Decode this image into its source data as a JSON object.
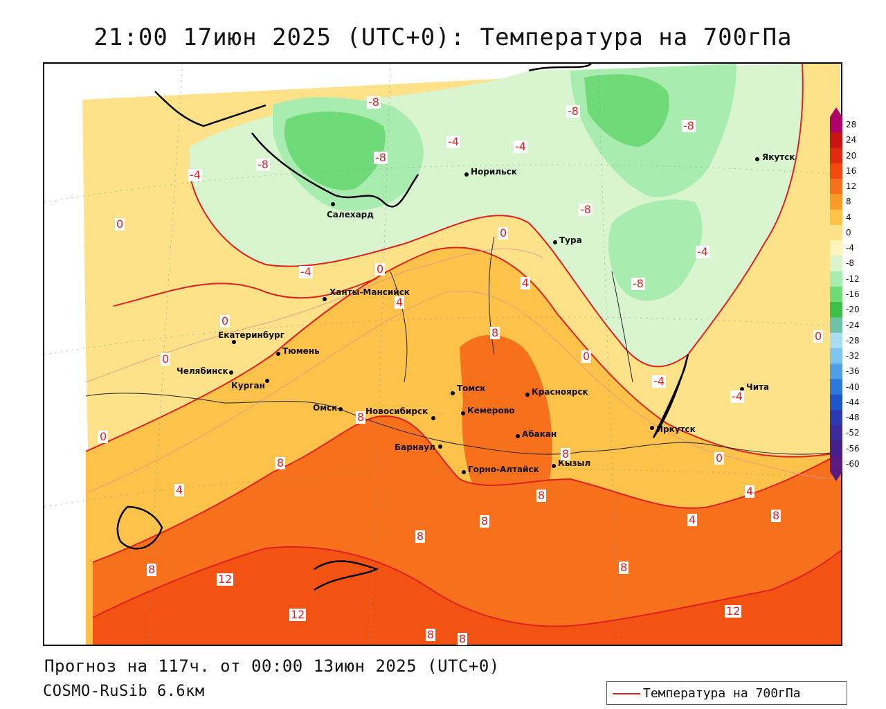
{
  "title": "21:00 17июн 2025 (UTC+0): Температура на 700гПа",
  "footer": {
    "forecast": "Прогноз на 117ч. от 00:00 13июн 2025 (UTC+0)",
    "model": "COSMO-RuSib 6.6км"
  },
  "legend": {
    "label": "Температура на 700гПа",
    "line_color": "#e02020"
  },
  "colorbar": {
    "ticks": [
      "28",
      "24",
      "20",
      "16",
      "12",
      "8",
      "4",
      "0",
      "-4",
      "-8",
      "-12",
      "-16",
      "-20",
      "-24",
      "-28",
      "-32",
      "-36",
      "-40",
      "-44",
      "-48",
      "-52",
      "-56",
      "-60"
    ],
    "colors": [
      "#b0006a",
      "#c81414",
      "#e02a10",
      "#f04a10",
      "#f7701c",
      "#fa9a28",
      "#fcc24a",
      "#fde28a",
      "#fdf3bc",
      "#d8f5d0",
      "#a8ecb0",
      "#6edb78",
      "#3cc04a",
      "#6ec2a8",
      "#a8ddf2",
      "#7fc4ee",
      "#4f9ee6",
      "#2b78da",
      "#1f55c8",
      "#2a3ab0",
      "#3a2a9c",
      "#44208a",
      "#5a1a80"
    ]
  },
  "cities": [
    {
      "name": "Якутск"
    },
    {
      "name": "Норильск"
    },
    {
      "name": "Салехард"
    },
    {
      "name": "Тура"
    },
    {
      "name": "Ханты-Мансийск"
    },
    {
      "name": "Екатеринбург"
    },
    {
      "name": "Тюмень"
    },
    {
      "name": "Челябинск"
    },
    {
      "name": "Курган"
    },
    {
      "name": "Омск"
    },
    {
      "name": "Новосибирск"
    },
    {
      "name": "Томск"
    },
    {
      "name": "Кемерово"
    },
    {
      "name": "Красноярск"
    },
    {
      "name": "Абакан"
    },
    {
      "name": "Барнаул"
    },
    {
      "name": "Горно-Алтайск"
    },
    {
      "name": "Кызыл"
    },
    {
      "name": "Иркутск"
    },
    {
      "name": "Чита"
    }
  ],
  "isotherm_labels": [
    "-8",
    "-4",
    "0",
    "4",
    "8",
    "12"
  ]
}
